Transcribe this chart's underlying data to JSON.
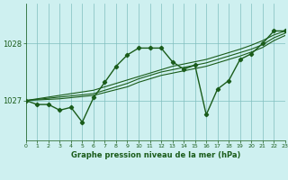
{
  "title": "Graphe pression niveau de la mer (hPa)",
  "bg_color": "#cef0f0",
  "line_color": "#1a5c1a",
  "grid_color": "#7fbfbf",
  "text_color": "#1a5c1a",
  "xlim": [
    0,
    23
  ],
  "ylim": [
    1026.3,
    1028.7
  ],
  "yticks": [
    1027,
    1028
  ],
  "xticks": [
    0,
    1,
    2,
    3,
    4,
    5,
    6,
    7,
    8,
    9,
    10,
    11,
    12,
    13,
    14,
    15,
    16,
    17,
    18,
    19,
    20,
    21,
    22,
    23
  ],
  "series_main_x": [
    0,
    1,
    2,
    3,
    4,
    5,
    6,
    7,
    8,
    9,
    10,
    11,
    12,
    13,
    14,
    15,
    16,
    17,
    18,
    19,
    20,
    21,
    22,
    23
  ],
  "series_main_y": [
    1027.0,
    1026.93,
    1026.93,
    1026.83,
    1026.88,
    1026.62,
    1027.05,
    1027.32,
    1027.6,
    1027.8,
    1027.92,
    1027.92,
    1027.92,
    1027.68,
    1027.55,
    1027.62,
    1026.75,
    1027.2,
    1027.35,
    1027.72,
    1027.82,
    1028.0,
    1028.22,
    1028.22
  ],
  "series_trend1_x": [
    0,
    1,
    2,
    3,
    4,
    5,
    6,
    7,
    8,
    9,
    10,
    11,
    12,
    13,
    14,
    15,
    16,
    17,
    18,
    19,
    20,
    21,
    22,
    23
  ],
  "series_trend1_y": [
    1027.0,
    1027.02,
    1027.04,
    1027.06,
    1027.08,
    1027.1,
    1027.12,
    1027.18,
    1027.24,
    1027.3,
    1027.38,
    1027.44,
    1027.5,
    1027.54,
    1027.58,
    1027.62,
    1027.66,
    1027.72,
    1027.78,
    1027.84,
    1027.9,
    1027.98,
    1028.1,
    1028.18
  ],
  "series_trend2_x": [
    0,
    1,
    2,
    3,
    4,
    5,
    6,
    7,
    8,
    9,
    10,
    11,
    12,
    13,
    14,
    15,
    16,
    17,
    18,
    19,
    20,
    21,
    22,
    23
  ],
  "series_trend2_y": [
    1027.0,
    1027.03,
    1027.06,
    1027.09,
    1027.12,
    1027.15,
    1027.18,
    1027.24,
    1027.3,
    1027.36,
    1027.42,
    1027.48,
    1027.54,
    1027.6,
    1027.64,
    1027.68,
    1027.72,
    1027.78,
    1027.84,
    1027.9,
    1027.97,
    1028.05,
    1028.15,
    1028.22
  ],
  "series_trend3_x": [
    0,
    1,
    2,
    3,
    4,
    5,
    6,
    7,
    8,
    9,
    10,
    11,
    12,
    13,
    14,
    15,
    16,
    17,
    18,
    19,
    20,
    21,
    22,
    23
  ],
  "series_trend3_y": [
    1027.0,
    1027.01,
    1027.02,
    1027.03,
    1027.05,
    1027.07,
    1027.09,
    1027.14,
    1027.19,
    1027.24,
    1027.32,
    1027.38,
    1027.44,
    1027.48,
    1027.52,
    1027.56,
    1027.6,
    1027.66,
    1027.72,
    1027.78,
    1027.85,
    1027.93,
    1028.05,
    1028.14
  ]
}
